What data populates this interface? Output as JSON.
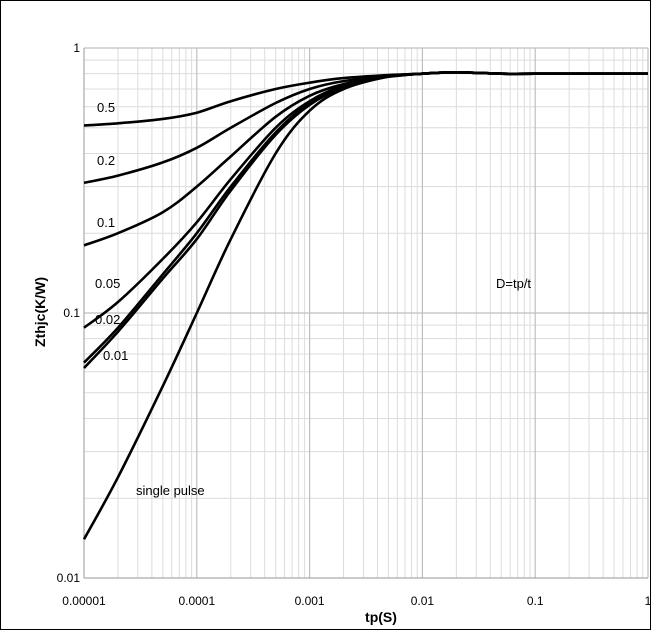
{
  "chart_data": {
    "type": "line",
    "title": "",
    "xlabel": "tp(S)",
    "ylabel": "Zthjc(K/W)",
    "x_scale": "log",
    "y_scale": "log",
    "xlim": [
      1e-05,
      1
    ],
    "ylim": [
      0.01,
      1
    ],
    "x_ticks": [
      "0.00001",
      "0.0001",
      "0.001",
      "0.01",
      "0.1",
      "1"
    ],
    "y_ticks": [
      "0.01",
      "0.1",
      "1"
    ],
    "grid": true,
    "legend": "none",
    "annotation": "D=tp/t",
    "series": [
      {
        "name": "0.5",
        "color": "#000000",
        "points": [
          [
            1e-05,
            0.51
          ],
          [
            2e-05,
            0.52
          ],
          [
            5e-05,
            0.54
          ],
          [
            0.0001,
            0.57
          ],
          [
            0.0002,
            0.63
          ],
          [
            0.0005,
            0.7
          ],
          [
            0.001,
            0.74
          ],
          [
            0.002,
            0.77
          ],
          [
            0.005,
            0.79
          ],
          [
            0.01,
            0.8
          ],
          [
            0.02,
            0.81
          ],
          [
            0.05,
            0.8
          ],
          [
            0.1,
            0.8
          ],
          [
            1,
            0.8
          ]
        ]
      },
      {
        "name": "0.2",
        "color": "#000000",
        "points": [
          [
            1e-05,
            0.31
          ],
          [
            2e-05,
            0.33
          ],
          [
            5e-05,
            0.37
          ],
          [
            0.0001,
            0.42
          ],
          [
            0.0002,
            0.5
          ],
          [
            0.0005,
            0.62
          ],
          [
            0.001,
            0.7
          ],
          [
            0.002,
            0.75
          ],
          [
            0.005,
            0.78
          ],
          [
            0.01,
            0.8
          ],
          [
            0.02,
            0.81
          ],
          [
            0.05,
            0.8
          ],
          [
            0.1,
            0.8
          ],
          [
            1,
            0.8
          ]
        ]
      },
      {
        "name": "0.1",
        "color": "#000000",
        "points": [
          [
            1e-05,
            0.18
          ],
          [
            2e-05,
            0.2
          ],
          [
            5e-05,
            0.24
          ],
          [
            0.0001,
            0.3
          ],
          [
            0.0002,
            0.39
          ],
          [
            0.0005,
            0.55
          ],
          [
            0.001,
            0.66
          ],
          [
            0.002,
            0.73
          ],
          [
            0.005,
            0.78
          ],
          [
            0.01,
            0.8
          ],
          [
            0.02,
            0.81
          ],
          [
            0.05,
            0.8
          ],
          [
            0.1,
            0.8
          ],
          [
            1,
            0.8
          ]
        ]
      },
      {
        "name": "0.05",
        "color": "#000000",
        "points": [
          [
            1e-05,
            0.088
          ],
          [
            2e-05,
            0.11
          ],
          [
            5e-05,
            0.16
          ],
          [
            0.0001,
            0.22
          ],
          [
            0.0002,
            0.32
          ],
          [
            0.0005,
            0.5
          ],
          [
            0.001,
            0.63
          ],
          [
            0.002,
            0.72
          ],
          [
            0.005,
            0.78
          ],
          [
            0.01,
            0.8
          ],
          [
            0.02,
            0.81
          ],
          [
            0.05,
            0.8
          ],
          [
            0.1,
            0.8
          ],
          [
            1,
            0.8
          ]
        ]
      },
      {
        "name": "0.02",
        "color": "#000000",
        "points": [
          [
            1e-05,
            0.065
          ],
          [
            2e-05,
            0.088
          ],
          [
            5e-05,
            0.14
          ],
          [
            0.0001,
            0.2
          ],
          [
            0.0002,
            0.3
          ],
          [
            0.0005,
            0.48
          ],
          [
            0.001,
            0.62
          ],
          [
            0.002,
            0.72
          ],
          [
            0.005,
            0.78
          ],
          [
            0.01,
            0.8
          ],
          [
            0.02,
            0.81
          ],
          [
            0.05,
            0.8
          ],
          [
            0.1,
            0.8
          ],
          [
            1,
            0.8
          ]
        ]
      },
      {
        "name": "0.01",
        "color": "#000000",
        "points": [
          [
            1e-05,
            0.062
          ],
          [
            2e-05,
            0.085
          ],
          [
            5e-05,
            0.135
          ],
          [
            0.0001,
            0.19
          ],
          [
            0.0002,
            0.29
          ],
          [
            0.0005,
            0.47
          ],
          [
            0.001,
            0.61
          ],
          [
            0.002,
            0.71
          ],
          [
            0.005,
            0.78
          ],
          [
            0.01,
            0.8
          ],
          [
            0.02,
            0.81
          ],
          [
            0.05,
            0.8
          ],
          [
            0.1,
            0.8
          ],
          [
            1,
            0.8
          ]
        ]
      },
      {
        "name": "single pulse",
        "color": "#000000",
        "points": [
          [
            1e-05,
            0.014
          ],
          [
            2e-05,
            0.024
          ],
          [
            5e-05,
            0.053
          ],
          [
            0.0001,
            0.1
          ],
          [
            0.0002,
            0.19
          ],
          [
            0.0005,
            0.4
          ],
          [
            0.001,
            0.58
          ],
          [
            0.002,
            0.7
          ],
          [
            0.005,
            0.78
          ],
          [
            0.01,
            0.8
          ],
          [
            0.02,
            0.81
          ],
          [
            0.05,
            0.8
          ],
          [
            0.1,
            0.8
          ],
          [
            1,
            0.8
          ]
        ]
      }
    ]
  }
}
